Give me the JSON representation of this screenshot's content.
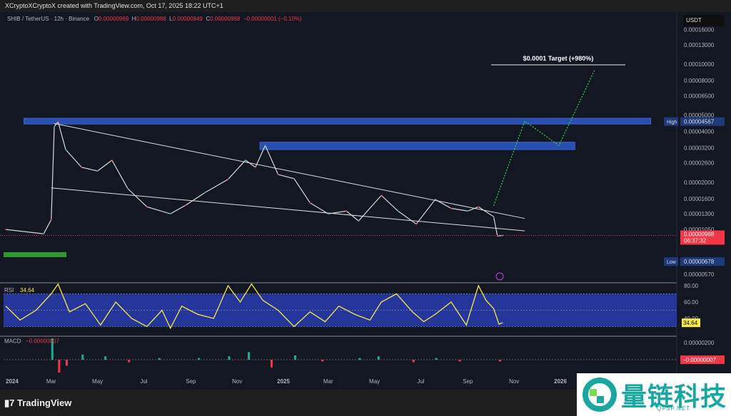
{
  "header": {
    "credit": "XCryptoXCryptoX created with TradingView.com, Oct 17, 2025 18:22 UTC+1",
    "symbol": "SHIB / TetherUS · 12h · Binance",
    "o_label": "O",
    "o": "0.00000969",
    "h_label": "H",
    "h": "0.00000988",
    "l_label": "L",
    "l": "0.00000949",
    "c_label": "C",
    "c": "0.00000968",
    "change": "−0.00000001 (−0.10%)"
  },
  "currency": "USDT",
  "colors": {
    "bg": "#131722",
    "zone": "#2a4db0",
    "rsi_line": "#f5e94a",
    "rsi_band": "#24369a",
    "down": "#f23645",
    "up": "#22ab94",
    "projection": "#2ecc40"
  },
  "chart_data": [
    {
      "type": "line",
      "pane": "price",
      "scale": "log",
      "y_ticks": [
        "0.00016000",
        "0.00013000",
        "0.00010000",
        "0.00008000",
        "0.00006500",
        "0.00005000",
        "0.00004000",
        "0.00003200",
        "0.00002600",
        "0.00002000",
        "0.00001600",
        "0.00001300",
        "0.00001050",
        "0.00000570"
      ],
      "y_tick_values": [
        0.00016,
        0.00013,
        0.0001,
        8e-05,
        6.5e-05,
        5e-05,
        4e-05,
        3.2e-05,
        2.6e-05,
        2e-05,
        1.6e-05,
        1.3e-05,
        1.05e-05,
        5.7e-06
      ],
      "x_ticks": [
        "2024",
        "Mar",
        "May",
        "Jul",
        "Sep",
        "Nov",
        "2025",
        "Mar",
        "May",
        "Jul",
        "Sep",
        "Nov",
        "2026"
      ],
      "x_tick_dates": [
        "2024-01-01",
        "2024-03-01",
        "2024-05-01",
        "2024-07-01",
        "2024-09-01",
        "2024-11-01",
        "2025-01-01",
        "2025-03-01",
        "2025-05-01",
        "2025-07-01",
        "2025-09-01",
        "2025-11-01",
        "2026-01-01"
      ],
      "series": [
        {
          "x": [
            "2024-01-01",
            "2024-02-20",
            "2024-03-01",
            "2024-03-05",
            "2024-03-10",
            "2024-03-20",
            "2024-04-10",
            "2024-05-01",
            "2024-05-20",
            "2024-06-10",
            "2024-07-05",
            "2024-08-05",
            "2024-08-25",
            "2024-09-20",
            "2024-10-20",
            "2024-11-12",
            "2024-11-25",
            "2024-12-08",
            "2024-12-25",
            "2025-01-15",
            "2025-02-05",
            "2025-03-01",
            "2025-03-25",
            "2025-04-10",
            "2025-05-10",
            "2025-06-01",
            "2025-06-25",
            "2025-07-20",
            "2025-08-10",
            "2025-09-01",
            "2025-09-15",
            "2025-10-05",
            "2025-10-10",
            "2025-10-17"
          ],
          "y": [
            1.05e-05,
            9.9e-06,
            1.2e-05,
            4.26e-05,
            4.56e-05,
            3.12e-05,
            2.45e-05,
            2.33e-05,
            2.7e-05,
            1.83e-05,
            1.43e-05,
            1.3e-05,
            1.46e-05,
            1.74e-05,
            2.08e-05,
            2.7e-05,
            2.45e-05,
            3.3e-05,
            2.22e-05,
            2.1e-05,
            1.51e-05,
            1.3e-05,
            1.35e-05,
            1.18e-05,
            1.67e-05,
            1.35e-05,
            1.13e-05,
            1.58e-05,
            1.4e-05,
            1.35e-05,
            1.43e-05,
            1.25e-05,
            9.6e-06,
            9.68e-06
          ]
        }
      ],
      "last_price": "0.00000968",
      "countdown": "06:37:32",
      "high_label": "High",
      "high": "0.00004567",
      "low_label": "Low",
      "low": "0.00000678",
      "annotation": "$0.0001 Target (+980%)",
      "zones": [
        {
          "from": 4.42e-05,
          "to": 4.78e-05,
          "start": "2024-01-25",
          "end": "2026-04-30"
        },
        {
          "from": 3.12e-05,
          "to": 3.45e-05,
          "start": "2024-12-01",
          "end": "2026-01-20"
        }
      ],
      "wedge": [
        {
          "p1": [
            "2024-03-05",
            4.45e-05
          ],
          "p2": [
            "2025-11-15",
            1.22e-05
          ]
        },
        {
          "p1": [
            "2024-03-01",
            1.85e-05
          ],
          "p2": [
            "2025-11-15",
            1.03e-05
          ]
        }
      ],
      "projection": {
        "x": [
          "2025-10-05",
          "2025-11-15",
          "2025-12-30",
          "2026-02-15"
        ],
        "y": [
          1.45e-05,
          4.6e-05,
          3.3e-05,
          9.2e-05
        ]
      }
    },
    {
      "type": "line",
      "pane": "rsi",
      "title": "RSI",
      "value": "34.64",
      "y_ticks": [
        "80.00",
        "60.00",
        "40.00"
      ],
      "band": [
        30,
        70
      ],
      "x": [
        "2024-01-01",
        "2024-01-20",
        "2024-02-10",
        "2024-03-01",
        "2024-03-10",
        "2024-03-25",
        "2024-04-15",
        "2024-05-05",
        "2024-05-25",
        "2024-06-15",
        "2024-07-05",
        "2024-07-25",
        "2024-08-05",
        "2024-08-20",
        "2024-09-10",
        "2024-10-01",
        "2024-10-20",
        "2024-11-05",
        "2024-11-20",
        "2024-12-05",
        "2024-12-25",
        "2025-01-15",
        "2025-02-05",
        "2025-02-25",
        "2025-03-15",
        "2025-04-05",
        "2025-04-25",
        "2025-05-10",
        "2025-05-30",
        "2025-06-20",
        "2025-07-05",
        "2025-07-20",
        "2025-08-10",
        "2025-08-30",
        "2025-09-15",
        "2025-09-25",
        "2025-10-05",
        "2025-10-12",
        "2025-10-17"
      ],
      "y": [
        55,
        38,
        50,
        70,
        82,
        48,
        58,
        32,
        60,
        40,
        30,
        50,
        28,
        55,
        45,
        40,
        80,
        60,
        82,
        62,
        50,
        30,
        48,
        36,
        55,
        45,
        38,
        60,
        70,
        48,
        36,
        45,
        60,
        32,
        80,
        62,
        52,
        33,
        34.64
      ]
    },
    {
      "type": "bar",
      "pane": "macd",
      "title": "MACD",
      "value": "−0.00000007",
      "y_ticks": [
        "0.00000200"
      ],
      "x": [
        "2024-03-01",
        "2024-03-10",
        "2024-03-20",
        "2024-04-10",
        "2024-05-10",
        "2024-06-10",
        "2024-07-20",
        "2024-09-10",
        "2024-10-20",
        "2024-11-15",
        "2024-12-15",
        "2025-01-15",
        "2025-02-20",
        "2025-04-10",
        "2025-05-05",
        "2025-06-20",
        "2025-07-20",
        "2025-08-20",
        "2025-10-12"
      ],
      "y": [
        2.5e-06,
        -1.5e-06,
        -7e-07,
        6e-07,
        4e-07,
        -3e-07,
        2e-07,
        2e-07,
        4e-07,
        9e-07,
        -9e-07,
        5e-07,
        -2e-07,
        2e-07,
        4e-07,
        -3e-07,
        2e-07,
        -2e-07,
        -2e-07
      ]
    }
  ],
  "footer": {
    "brand": "TradingView"
  },
  "watermark": {
    "text": "量链科技",
    "domain": "QFSP.NET"
  }
}
